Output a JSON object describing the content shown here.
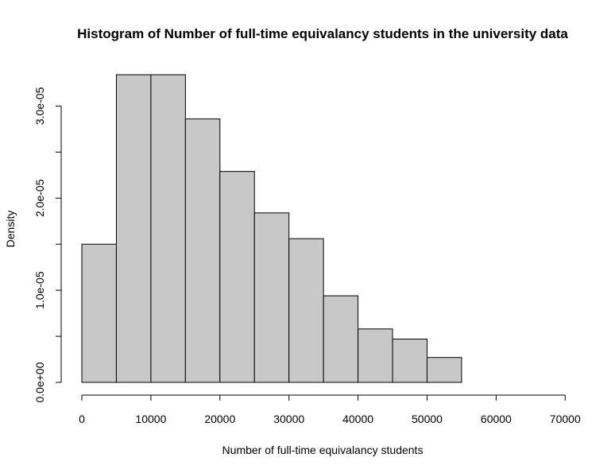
{
  "chart_data": {
    "type": "bar",
    "title": "Histogram of Number of full-time equivalancy students in the university data",
    "xlabel": "Number of full-time equivalancy students",
    "ylabel": "Density",
    "bins": [
      {
        "start": 0,
        "end": 5000,
        "density": 1.5e-05
      },
      {
        "start": 5000,
        "end": 10000,
        "density": 3.34e-05
      },
      {
        "start": 10000,
        "end": 15000,
        "density": 3.34e-05
      },
      {
        "start": 15000,
        "end": 20000,
        "density": 2.86e-05
      },
      {
        "start": 20000,
        "end": 25000,
        "density": 2.29e-05
      },
      {
        "start": 25000,
        "end": 30000,
        "density": 1.84e-05
      },
      {
        "start": 30000,
        "end": 35000,
        "density": 1.56e-05
      },
      {
        "start": 35000,
        "end": 40000,
        "density": 9.4e-06
      },
      {
        "start": 40000,
        "end": 45000,
        "density": 5.8e-06
      },
      {
        "start": 45000,
        "end": 50000,
        "density": 4.7e-06
      },
      {
        "start": 50000,
        "end": 55000,
        "density": 2.7e-06
      },
      {
        "start": 55000,
        "end": 60000,
        "density": 0.0
      },
      {
        "start": 60000,
        "end": 65000,
        "density": 0.0
      },
      {
        "start": 65000,
        "end": 70000,
        "density": 0.0
      },
      {
        "start": 70000,
        "end": 72500,
        "density": 0.0
      }
    ],
    "xticks": [
      0,
      10000,
      20000,
      30000,
      40000,
      50000,
      60000,
      70000
    ],
    "xtick_labels": [
      "0",
      "10000",
      "20000",
      "30000",
      "40000",
      "50000",
      "60000",
      "70000"
    ],
    "yticks": [
      0,
      5e-06,
      1e-05,
      1.5e-05,
      2e-05,
      2.5e-05,
      3e-05
    ],
    "ytick_labels": [
      "0.0e+00",
      "",
      "1.0e-05",
      "",
      "2.0e-05",
      "",
      "3.0e-05"
    ],
    "xlim": [
      0,
      72500
    ],
    "ylim": [
      0,
      3.34e-05
    ],
    "grid": false,
    "colors": {
      "bar_fill": "#c8c8c8",
      "bar_stroke": "#000000"
    }
  }
}
